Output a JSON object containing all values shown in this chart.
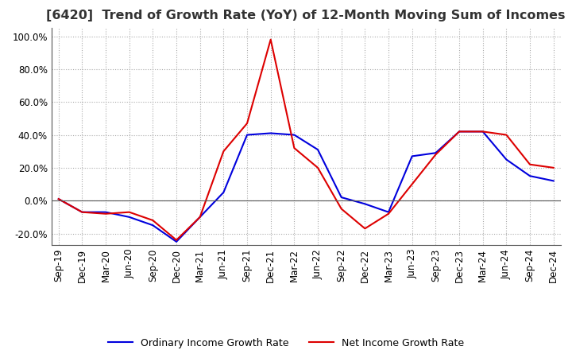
{
  "title": "[6420]  Trend of Growth Rate (YoY) of 12-Month Moving Sum of Incomes",
  "title_fontsize": 11.5,
  "ylim": [
    -0.27,
    1.05
  ],
  "yticks": [
    -0.2,
    0.0,
    0.2,
    0.4,
    0.6,
    0.8,
    1.0
  ],
  "background_color": "#ffffff",
  "grid_color": "#aaaaaa",
  "ordinary_color": "#0000dd",
  "net_color": "#dd0000",
  "legend_ordinary": "Ordinary Income Growth Rate",
  "legend_net": "Net Income Growth Rate",
  "dates": [
    "Sep-19",
    "Dec-19",
    "Mar-20",
    "Jun-20",
    "Sep-20",
    "Dec-20",
    "Mar-21",
    "Jun-21",
    "Sep-21",
    "Dec-21",
    "Mar-22",
    "Jun-22",
    "Sep-22",
    "Dec-22",
    "Mar-23",
    "Jun-23",
    "Sep-23",
    "Dec-23",
    "Mar-24",
    "Jun-24",
    "Sep-24",
    "Dec-24"
  ],
  "ordinary": [
    0.01,
    -0.07,
    -0.07,
    -0.1,
    -0.15,
    -0.25,
    -0.1,
    0.05,
    0.4,
    0.41,
    0.4,
    0.31,
    0.02,
    -0.02,
    -0.07,
    0.27,
    0.29,
    0.42,
    0.42,
    0.25,
    0.15,
    0.12
  ],
  "net": [
    0.01,
    -0.07,
    -0.08,
    -0.07,
    -0.12,
    -0.24,
    -0.1,
    0.3,
    0.47,
    0.98,
    0.32,
    0.2,
    -0.05,
    -0.17,
    -0.08,
    0.1,
    0.28,
    0.42,
    0.42,
    0.4,
    0.22,
    0.2
  ]
}
